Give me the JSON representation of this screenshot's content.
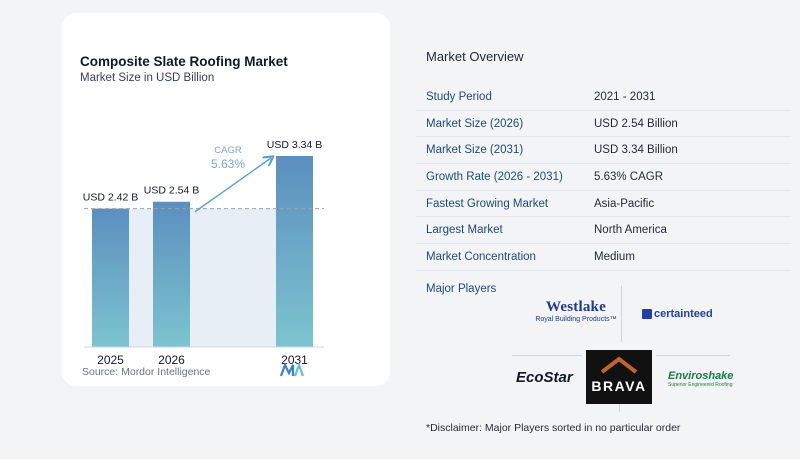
{
  "chart_data": {
    "type": "bar",
    "title": "Composite Slate Roofing Market",
    "subtitle": "Market Size in USD Billion",
    "categories": [
      "2025",
      "2026",
      "2031"
    ],
    "values": [
      2.42,
      2.54,
      3.34
    ],
    "data_labels": [
      "USD 2.42 B",
      "USD 2.54 B",
      "USD 3.34 B"
    ],
    "cagr_label": "CAGR",
    "cagr_value": "5.63%",
    "ylim": [
      0,
      3.5
    ],
    "grid": false,
    "colors": {
      "bar_top": "#5b8fbf",
      "bar_bottom": "#7cc4cf",
      "arrow": "#5a9fd4",
      "cagr_text": "#7aa7d4",
      "band": "#e8eef5"
    }
  },
  "source": "Source:  Mordor Intelligence",
  "source_logo_icon": "mordor-intelligence-logo",
  "overview": {
    "title": "Market Overview",
    "rows": [
      {
        "label": "Study Period",
        "value": "2021 - 2031"
      },
      {
        "label": "Market Size (2026)",
        "value": "USD 2.54 Billion"
      },
      {
        "label": "Market Size (2031)",
        "value": "USD 3.34 Billion"
      },
      {
        "label": "Growth Rate (2026 - 2031)",
        "value": "5.63% CAGR"
      },
      {
        "label": "Fastest Growing Market",
        "value": "Asia-Pacific"
      },
      {
        "label": "Largest Market",
        "value": "North America"
      },
      {
        "label": "Market Concentration",
        "value": "Medium"
      }
    ]
  },
  "players": {
    "title": "Major Players",
    "westlake": {
      "name": "Westlake",
      "sub": "Royal Building Products™"
    },
    "certainteed": {
      "name": "certainteed"
    },
    "ecostar": {
      "name": "EcoStar"
    },
    "brava": {
      "name": "BRAVA"
    },
    "enviroshake": {
      "name": "Enviroshake",
      "sub": "Superior Engineered Roofing"
    }
  },
  "disclaimer": "*Disclaimer: Major Players sorted in no particular order"
}
